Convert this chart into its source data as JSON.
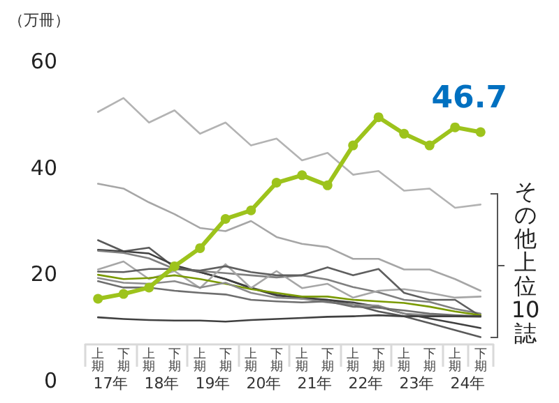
{
  "chart_data": {
    "type": "line",
    "ylabel": "（万冊）",
    "categories": [
      "上期",
      "下期",
      "上期",
      "下期",
      "上期",
      "下期",
      "上期",
      "下期",
      "上期",
      "下期",
      "上期",
      "下期",
      "上期",
      "下期",
      "上期",
      "下期"
    ],
    "annotations": [
      "17年",
      "18年",
      "19年",
      "20年",
      "21年",
      "22年",
      "23年",
      "24年",
      "その他上位10誌"
    ],
    "ylim": [
      0,
      60
    ],
    "yticks": [
      0,
      20,
      40,
      60
    ],
    "marker": "none",
    "series": [
      {
        "color": "#b3b3b3",
        "values": [
          50.5,
          53.1,
          48.5,
          50.8,
          46.4,
          48.5,
          44.2,
          45.5,
          41.4,
          42.8,
          38.7,
          39.4,
          35.7,
          36.1,
          32.5,
          33.1
        ]
      },
      {
        "color": "#a6a6a6",
        "values": [
          37.0,
          36.1,
          33.5,
          31.3,
          28.7,
          28.1,
          30.0,
          27.0,
          25.7,
          25.1,
          22.9,
          22.9,
          20.9,
          20.9,
          19.1,
          16.9
        ]
      },
      {
        "color": "#595959",
        "values": [
          26.4,
          24.3,
          25.0,
          21.3,
          20.4,
          19.1,
          17.5,
          16.2,
          15.4,
          15.2,
          14.3,
          13.0,
          12.1,
          10.8,
          9.5,
          8.2
        ]
      },
      {
        "color": "#404040",
        "values": [
          24.6,
          24.3,
          23.9,
          21.7,
          20.4,
          19.1,
          17.4,
          16.0,
          15.6,
          15.2,
          14.7,
          13.9,
          12.6,
          11.7,
          10.8,
          9.9
        ]
      },
      {
        "color": "#7f7f7f",
        "values": [
          24.4,
          24.0,
          23.0,
          21.0,
          20.6,
          20.2,
          19.8,
          19.4,
          19.8,
          19.0,
          17.6,
          16.6,
          15.2,
          14.8,
          13.5,
          12.6
        ]
      },
      {
        "color": "#a6a6a6",
        "values": [
          20.9,
          22.4,
          19.1,
          20.6,
          17.4,
          21.9,
          17.4,
          20.6,
          17.4,
          18.2,
          15.6,
          16.9,
          17.2,
          16.5,
          15.6,
          15.8
        ]
      },
      {
        "color": "#5f5f5f",
        "values": [
          20.5,
          20.4,
          21.0,
          21.0,
          20.7,
          21.5,
          20.4,
          19.8,
          19.8,
          21.3,
          19.8,
          21.0,
          16.5,
          15.2,
          15.2,
          12.1
        ]
      },
      {
        "color": "#7a9a01",
        "values": [
          19.9,
          19.1,
          19.3,
          19.8,
          19.1,
          18.2,
          17.2,
          16.5,
          15.8,
          15.8,
          15.2,
          14.9,
          14.6,
          13.9,
          13.0,
          12.3
        ]
      },
      {
        "color": "#8c8c8c",
        "values": [
          19.3,
          18.4,
          18.2,
          18.7,
          17.5,
          18.4,
          16.5,
          15.6,
          15.4,
          14.7,
          14.3,
          14.1,
          12.6,
          12.3,
          12.1,
          12.0
        ]
      },
      {
        "color": "#6e6e6e",
        "values": [
          18.7,
          17.5,
          17.5,
          16.9,
          16.5,
          16.2,
          15.2,
          14.9,
          14.7,
          14.9,
          13.9,
          13.7,
          13.2,
          12.6,
          12.3,
          12.1
        ]
      },
      {
        "color": "#404040",
        "values": [
          11.9,
          11.6,
          11.4,
          11.3,
          11.3,
          11.1,
          11.4,
          11.6,
          11.8,
          12.0,
          12.1,
          12.3,
          12.1,
          12.1,
          12.1,
          12.1
        ]
      },
      {
        "color": "#9dc31c",
        "marker": "circle",
        "values": [
          15.4,
          16.3,
          17.5,
          21.5,
          24.9,
          30.4,
          32.0,
          37.2,
          38.6,
          36.7,
          44.2,
          49.5,
          46.4,
          44.2,
          47.6,
          46.7
        ],
        "value_labels": [
          null,
          null,
          null,
          null,
          null,
          null,
          null,
          null,
          null,
          null,
          null,
          null,
          null,
          null,
          null,
          "46.7"
        ]
      }
    ]
  }
}
